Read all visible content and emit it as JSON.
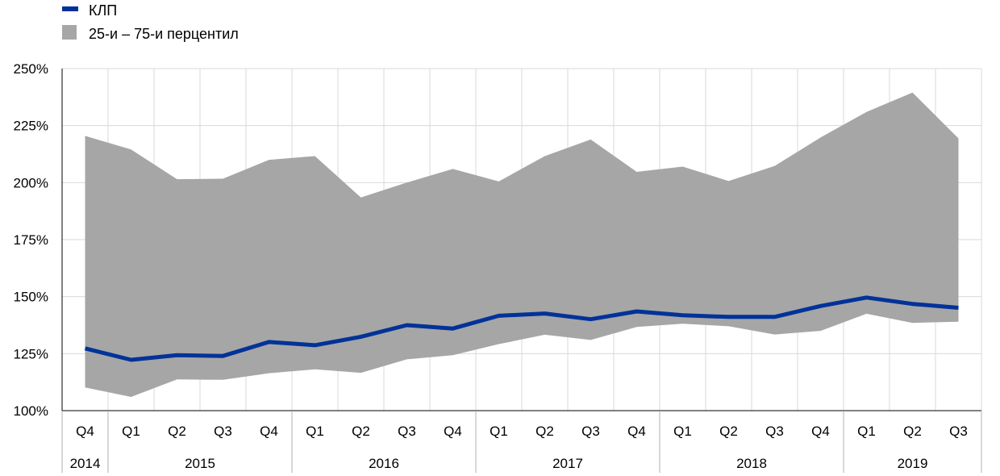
{
  "chart_data": {
    "type": "area",
    "legend": {
      "placement": "top-left",
      "items": [
        {
          "label": "КЛП",
          "kind": "line",
          "color": "#003299"
        },
        {
          "label": "25-и – 75-и перцентил",
          "kind": "band",
          "color": "#a6a6a6"
        }
      ]
    },
    "quarters": [
      "Q4",
      "Q1",
      "Q2",
      "Q3",
      "Q4",
      "Q1",
      "Q2",
      "Q3",
      "Q4",
      "Q1",
      "Q2",
      "Q3",
      "Q4",
      "Q1",
      "Q2",
      "Q3",
      "Q4",
      "Q1",
      "Q2",
      "Q3"
    ],
    "years": [
      {
        "label": "2014",
        "from": 0,
        "to": 0
      },
      {
        "label": "2015",
        "from": 1,
        "to": 4
      },
      {
        "label": "2016",
        "from": 5,
        "to": 8
      },
      {
        "label": "2017",
        "from": 9,
        "to": 12
      },
      {
        "label": "2018",
        "from": 13,
        "to": 16
      },
      {
        "label": "2019",
        "from": 17,
        "to": 19
      }
    ],
    "y_ticks": [
      {
        "value": 100,
        "label": "100%"
      },
      {
        "value": 125,
        "label": "125%"
      },
      {
        "value": 150,
        "label": "150%"
      },
      {
        "value": 175,
        "label": "175%"
      },
      {
        "value": 200,
        "label": "200%"
      },
      {
        "value": 225,
        "label": "225%"
      },
      {
        "value": 250,
        "label": "250%"
      }
    ],
    "ylim": [
      100,
      250
    ],
    "grid": true,
    "series": [
      {
        "name": "КЛП",
        "type": "line",
        "color": "#003299",
        "values": [
          127.3,
          122.3,
          124.3,
          124.0,
          130.1,
          128.7,
          132.4,
          137.5,
          136.0,
          141.6,
          142.6,
          140.1,
          143.5,
          141.8,
          141.1,
          141.1,
          145.9,
          149.6,
          146.8,
          145.1
        ]
      },
      {
        "name": "25-и – 75-и перцентил",
        "type": "band",
        "color": "#a6a6a6",
        "lower": [
          110.2,
          106.0,
          113.7,
          113.5,
          116.4,
          118.1,
          116.6,
          122.5,
          124.3,
          129.2,
          133.3,
          131.0,
          136.7,
          138.1,
          137.0,
          133.4,
          135.0,
          142.5,
          138.5,
          139.0
        ],
        "upper": [
          220.5,
          214.5,
          201.5,
          201.7,
          210.0,
          211.6,
          193.5,
          200.0,
          206.0,
          200.5,
          211.6,
          218.9,
          204.7,
          207.0,
          200.7,
          207.3,
          219.8,
          231.0,
          239.5,
          219.4
        ]
      }
    ]
  }
}
